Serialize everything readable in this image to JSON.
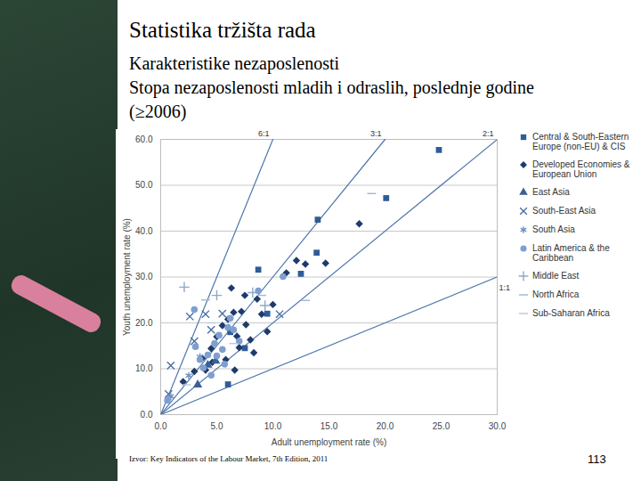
{
  "title": "Statistika tržišta rada",
  "subtitle": [
    "Karakteristike nezaposlenosti",
    "Stopa nezaposlenosti mladih i odraslih, poslednje godine (≥2006)"
  ],
  "source": "Izvor: Key Indicators of the Labour Market, 7th Edition, 2011",
  "page_number": "113",
  "chart_data": {
    "type": "scatter",
    "x_label": "Adult unemployment rate (%)",
    "y_label": "Youth unemployment rate (%)",
    "xlim": [
      0,
      30
    ],
    "xticks": [
      {
        "value": 0,
        "label": "0.0"
      },
      {
        "value": 5,
        "label": "5.0"
      },
      {
        "value": 10,
        "label": "10.0"
      },
      {
        "value": 15,
        "label": "15.0"
      },
      {
        "value": 20,
        "label": "20.0"
      },
      {
        "value": 25,
        "label": "25.0"
      },
      {
        "value": 30,
        "label": "30.0"
      }
    ],
    "ylim": [
      0,
      60
    ],
    "yticks": [
      {
        "value": 0,
        "label": "0.0"
      },
      {
        "value": 10,
        "label": "10.0"
      },
      {
        "value": 20,
        "label": "20.0"
      },
      {
        "value": 30,
        "label": "30.0"
      },
      {
        "value": 40,
        "label": "40.0"
      },
      {
        "value": 50,
        "label": "50.0"
      },
      {
        "value": 60,
        "label": "60.0"
      }
    ],
    "grid": true,
    "legend": "right",
    "reference_lines": [
      {
        "label": "6:1",
        "slope": 6
      },
      {
        "label": "3:1",
        "slope": 3
      },
      {
        "label": "2:1",
        "slope": 2
      },
      {
        "label": "1:1",
        "slope": 1
      }
    ],
    "series": [
      {
        "name": "Central & South-Eastern Europe (non-EU) & CIS",
        "color": "#2e5c99",
        "marker": "square",
        "values": [
          [
            24.8,
            57.7
          ],
          [
            20.1,
            47.2
          ],
          [
            14.0,
            42.5
          ],
          [
            13.9,
            35.3
          ],
          [
            8.7,
            31.6
          ],
          [
            12.5,
            30.7
          ],
          [
            6.0,
            6.6
          ],
          [
            9.5,
            22.0
          ],
          [
            7.5,
            14.5
          ],
          [
            6.2,
            18.0
          ]
        ]
      },
      {
        "name": "Developed Economies & European Union",
        "color": "#1f3a6b",
        "marker": "diamond",
        "values": [
          [
            17.7,
            41.6
          ],
          [
            14.7,
            33.0
          ],
          [
            12.9,
            32.8
          ],
          [
            12.1,
            33.6
          ],
          [
            11.2,
            30.9
          ],
          [
            6.3,
            27.6
          ],
          [
            7.5,
            26.0
          ],
          [
            8.6,
            25.2
          ],
          [
            3.7,
            12.3
          ],
          [
            4.0,
            9.7
          ],
          [
            4.5,
            14.4
          ],
          [
            5.0,
            17.0
          ],
          [
            5.5,
            19.4
          ],
          [
            6.0,
            20.8
          ],
          [
            6.5,
            22.3
          ],
          [
            6.6,
            9.7
          ],
          [
            7.0,
            14.6
          ],
          [
            7.2,
            22.5
          ],
          [
            7.6,
            19.6
          ],
          [
            8.0,
            16.3
          ],
          [
            8.3,
            13.5
          ],
          [
            9.0,
            21.9
          ],
          [
            9.5,
            18.1
          ],
          [
            2.0,
            7.2
          ],
          [
            3.0,
            9.4
          ],
          [
            5.8,
            12.0
          ],
          [
            4.6,
            11.4
          ],
          [
            6.8,
            17.1
          ],
          [
            10.0,
            24.0
          ]
        ]
      },
      {
        "name": "East Asia",
        "color": "#3a5f9a",
        "marker": "triangle",
        "values": [
          [
            3.3,
            6.5
          ],
          [
            4.2,
            10.8
          ],
          [
            4.9,
            11.7
          ]
        ]
      },
      {
        "name": "South-East Asia",
        "color": "#4a6fa5",
        "marker": "times",
        "values": [
          [
            0.9,
            10.7
          ],
          [
            2.6,
            21.4
          ],
          [
            4.0,
            21.9
          ],
          [
            10.6,
            21.9
          ],
          [
            0.7,
            4.5
          ],
          [
            3.0,
            16.0
          ],
          [
            4.5,
            18.5
          ],
          [
            5.5,
            22.0
          ]
        ]
      },
      {
        "name": "South Asia",
        "color": "#6a8fc0",
        "marker": "asterisk",
        "values": [
          [
            0.9,
            4.0
          ],
          [
            2.5,
            8.5
          ],
          [
            3.5,
            12.6
          ]
        ]
      },
      {
        "name": "Latin America & the Caribbean",
        "color": "#7f9fd0",
        "marker": "circle",
        "values": [
          [
            3.0,
            22.9
          ],
          [
            8.7,
            27.0
          ],
          [
            10.9,
            30.1
          ],
          [
            3.1,
            14.8
          ],
          [
            0.6,
            3.1
          ],
          [
            3.5,
            12.0
          ],
          [
            4.2,
            13.0
          ],
          [
            4.8,
            15.5
          ],
          [
            5.2,
            17.3
          ],
          [
            5.5,
            14.2
          ],
          [
            6.0,
            19.0
          ],
          [
            6.2,
            21.0
          ],
          [
            3.8,
            10.2
          ],
          [
            4.5,
            8.6
          ],
          [
            5.0,
            12.8
          ],
          [
            6.5,
            18.5
          ],
          [
            7.0,
            16.0
          ],
          [
            5.7,
            11.0
          ]
        ]
      },
      {
        "name": "Middle East",
        "color": "#8fa8c8",
        "marker": "plus",
        "values": [
          [
            2.1,
            27.8
          ],
          [
            8.2,
            26.6
          ],
          [
            9.3,
            23.8
          ],
          [
            5.0,
            26.0
          ]
        ]
      },
      {
        "name": "North Africa",
        "color": "#9fb5d5",
        "marker": "minus",
        "values": [
          [
            18.8,
            48.2
          ],
          [
            12.9,
            24.9
          ],
          [
            4.0,
            25.0
          ],
          [
            9.0,
            26.0
          ]
        ]
      },
      {
        "name": "Sub-Saharan Africa",
        "color": "#b7c7e0",
        "marker": "minus",
        "values": [
          [
            4.5,
            20.0
          ],
          [
            2.3,
            6.5
          ],
          [
            6.5,
            15.5
          ]
        ]
      }
    ]
  }
}
